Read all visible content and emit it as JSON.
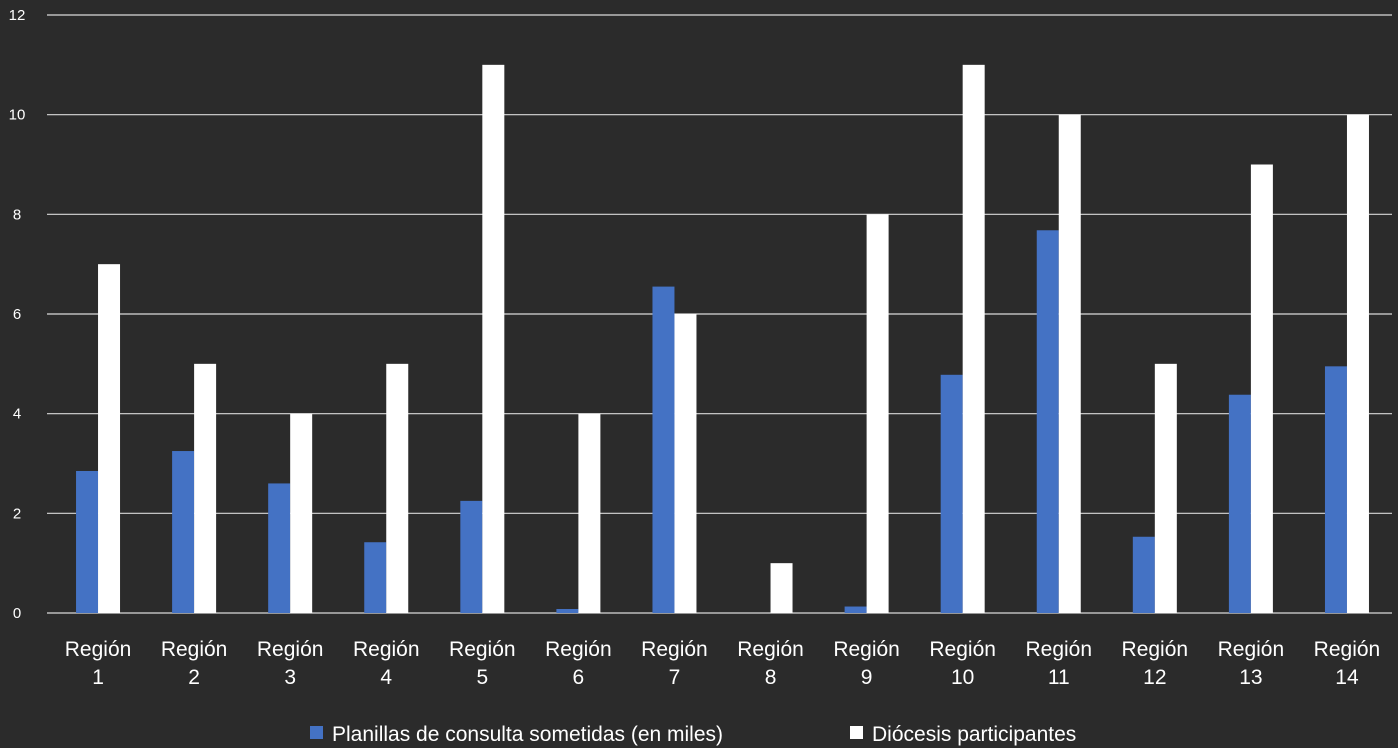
{
  "chart_data": {
    "type": "bar",
    "title": "",
    "xlabel": "",
    "ylabel": "",
    "ylim": [
      0,
      12
    ],
    "yticks": [
      0,
      2,
      4,
      6,
      8,
      10,
      12
    ],
    "grid": true,
    "legend_position": "bottom",
    "categories": [
      [
        "Región",
        "1"
      ],
      [
        "Región",
        "2"
      ],
      [
        "Región",
        "3"
      ],
      [
        "Región",
        "4"
      ],
      [
        "Región",
        "5"
      ],
      [
        "Región",
        "6"
      ],
      [
        "Región",
        "7"
      ],
      [
        "Región",
        "8"
      ],
      [
        "Región",
        "9"
      ],
      [
        "Región",
        "10"
      ],
      [
        "Región",
        "11"
      ],
      [
        "Región",
        "12"
      ],
      [
        "Región",
        "13"
      ],
      [
        "Región",
        "14"
      ]
    ],
    "series": [
      {
        "name": "Planillas de consulta sometidas (en miles)",
        "color": "#4472c4",
        "values": [
          2.85,
          3.25,
          2.6,
          1.42,
          2.25,
          0.08,
          6.55,
          0,
          0.13,
          4.78,
          7.68,
          1.53,
          4.38,
          4.95
        ]
      },
      {
        "name": "Diócesis participantes",
        "color": "#ffffff",
        "values": [
          7,
          5,
          4,
          5,
          11,
          4,
          6,
          1,
          8,
          11,
          10,
          5,
          9,
          10
        ]
      }
    ]
  },
  "colors": {
    "background": "#2b2b2b",
    "gridline": "#d9d9d9",
    "text": "#ffffff"
  }
}
